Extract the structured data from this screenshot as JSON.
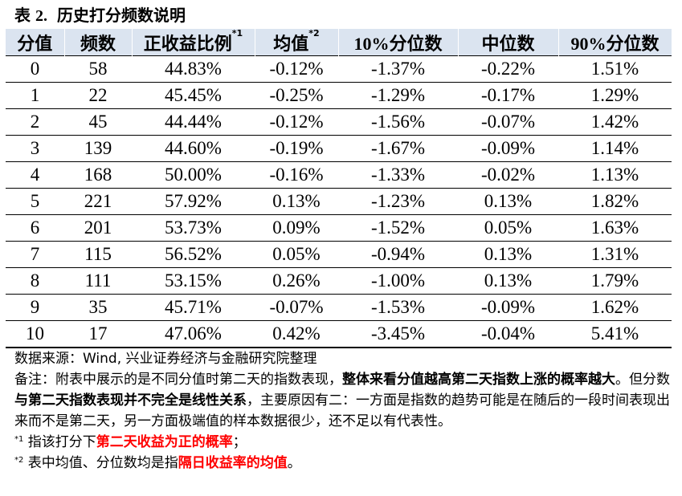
{
  "title": {
    "prefix": "表",
    "num": "2.",
    "text": "历史打分频数说明"
  },
  "table": {
    "headers": [
      {
        "label": "分值",
        "sup": ""
      },
      {
        "label": "频数",
        "sup": ""
      },
      {
        "label": "正收益比例",
        "sup": "*1"
      },
      {
        "label": "均值",
        "sup": "*2"
      },
      {
        "label": "10%分位数",
        "sup": ""
      },
      {
        "label": "中位数",
        "sup": ""
      },
      {
        "label": "90%分位数",
        "sup": ""
      }
    ],
    "rows": [
      [
        "0",
        "58",
        "44.83%",
        "-0.12%",
        "-1.37%",
        "-0.22%",
        "1.51%"
      ],
      [
        "1",
        "22",
        "45.45%",
        "-0.25%",
        "-1.29%",
        "-0.17%",
        "1.29%"
      ],
      [
        "2",
        "45",
        "44.44%",
        "-0.12%",
        "-1.56%",
        "-0.07%",
        "1.42%"
      ],
      [
        "3",
        "139",
        "44.60%",
        "-0.19%",
        "-1.67%",
        "-0.09%",
        "1.14%"
      ],
      [
        "4",
        "168",
        "50.00%",
        "-0.16%",
        "-1.33%",
        "-0.02%",
        "1.13%"
      ],
      [
        "5",
        "221",
        "57.92%",
        "0.13%",
        "-1.23%",
        "0.13%",
        "1.82%"
      ],
      [
        "6",
        "201",
        "53.73%",
        "0.09%",
        "-1.52%",
        "0.05%",
        "1.63%"
      ],
      [
        "7",
        "115",
        "56.52%",
        "0.05%",
        "-0.94%",
        "0.13%",
        "1.31%"
      ],
      [
        "8",
        "111",
        "53.15%",
        "0.26%",
        "-1.00%",
        "0.13%",
        "1.79%"
      ],
      [
        "9",
        "35",
        "45.71%",
        "-0.07%",
        "-1.53%",
        "-0.09%",
        "1.62%"
      ],
      [
        "10",
        "17",
        "47.06%",
        "0.42%",
        "-3.45%",
        "-0.04%",
        "5.41%"
      ]
    ]
  },
  "notes": {
    "source": "数据来源：Wind, 兴业证券经济与金融研究院整理",
    "remark_1": "备注：附表中展示的是不同分值时第二天的指数表现，",
    "remark_2_bold": "整体来看分值越高第二天指数上涨的概率越大",
    "remark_3": "。但分数",
    "remark_4_bold": "与第二天指数表现并不完全是线性关系",
    "remark_5": "，主要原因有二：一方面是指数的趋势可能是在随后的一段时间表现出来而不是第二天，另一方面极端值的样本数据很少，还不足以有代表性。",
    "fn1_mark": "*1",
    "fn1_text": " 指该打分下",
    "fn1_red": "第二天收益为正的概率",
    "fn1_end": "；",
    "fn2_mark": "*2",
    "fn2_text": " 表中均值、分位数均是指",
    "fn2_red": "隔日收益率的均值",
    "fn2_end": "。"
  },
  "colors": {
    "header_bg": "#dbe4f0",
    "highlight": "#ff0000"
  }
}
